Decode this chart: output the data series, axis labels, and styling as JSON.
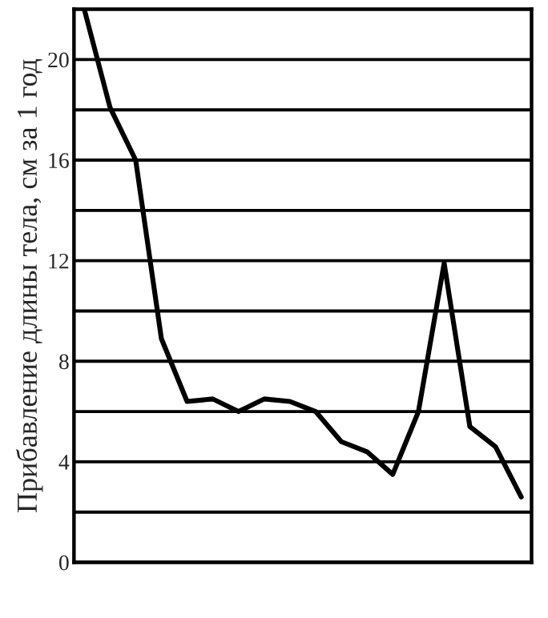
{
  "chart_data": {
    "type": "line",
    "ylabel": "Прибавление длины тела, см за 1 год",
    "categories": [
      null,
      null,
      null,
      null,
      null,
      null,
      null,
      null,
      null,
      null,
      null,
      null,
      null,
      null,
      null,
      null,
      null,
      null
    ],
    "series": [
      {
        "color": "#000000",
        "values": [
          22.0,
          18.1,
          16.0,
          8.9,
          6.4,
          6.5,
          6.0,
          6.5,
          6.4,
          6.0,
          4.8,
          4.4,
          3.5,
          6.0,
          11.9,
          5.4,
          4.6,
          2.6
        ]
      }
    ],
    "ylim": [
      0,
      22
    ],
    "yticks": [
      0,
      {
        "value": 2,
        "label": null
      },
      4,
      {
        "value": 6,
        "label": null
      },
      8,
      {
        "value": 10,
        "label": null
      },
      12,
      {
        "value": 14,
        "label": null
      },
      16,
      {
        "value": 18,
        "label": null
      },
      20
    ],
    "grid": "y",
    "marker": "none",
    "line_style": "solid"
  }
}
